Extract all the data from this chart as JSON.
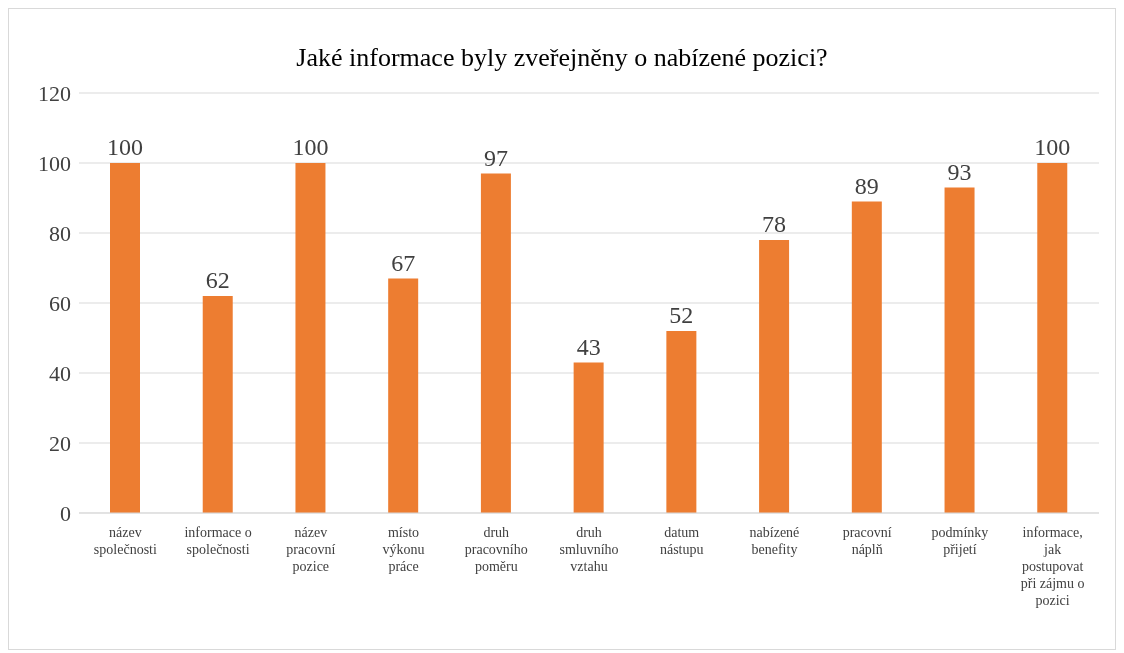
{
  "chart_data": {
    "type": "bar",
    "title": "Jaké informace byly zveřejněny o nabízené pozici?",
    "categories": [
      "název společnosti",
      "informace o společnosti",
      "název pracovní pozice",
      "místo výkonu práce",
      "druh pracovního poměru",
      "druh smluvního vztahu",
      "datum nástupu",
      "nabízené benefity",
      "pracovní náplň",
      "podmínky přijetí",
      "informace, jak postupovat při zájmu o pozici"
    ],
    "values": [
      100,
      62,
      100,
      67,
      97,
      43,
      52,
      78,
      89,
      93,
      100
    ],
    "color": "#ed7d31",
    "ylim": [
      0,
      120
    ],
    "yticks": [
      0,
      20,
      40,
      60,
      80,
      100,
      120
    ],
    "grid": "y",
    "data_labels": true
  }
}
